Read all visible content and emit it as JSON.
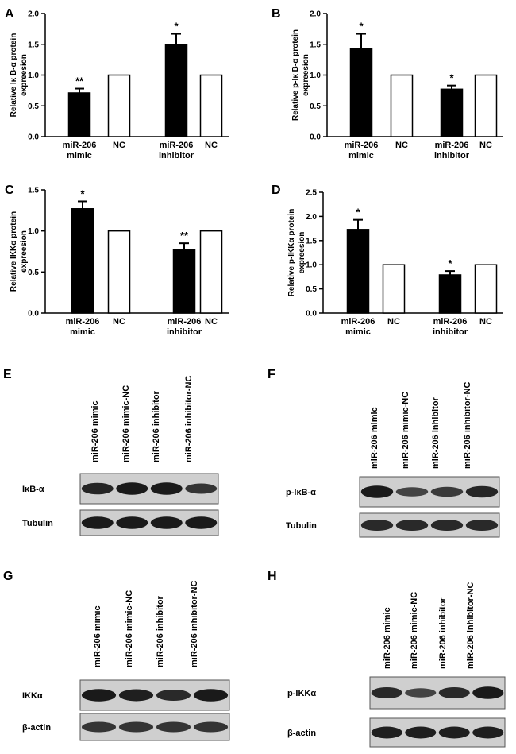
{
  "charts": [
    {
      "panel": "A",
      "ylabel": [
        "Relative Iκ B-α  protein",
        "expreesion"
      ],
      "ylim": [
        0,
        2.0
      ],
      "yticks": [
        "0.0",
        "0.5",
        "1.0",
        "1.5",
        "2.0"
      ],
      "bars": [
        {
          "cat": [
            "miR-206",
            "mimic"
          ],
          "value": 0.71,
          "err": 0.07,
          "fill": "#000000",
          "sig": "**"
        },
        {
          "cat": [
            "NC"
          ],
          "value": 1.0,
          "err": 0,
          "fill": "#ffffff",
          "sig": ""
        },
        {
          "cat": [
            "miR-206",
            "inhibitor"
          ],
          "value": 1.49,
          "err": 0.18,
          "fill": "#000000",
          "sig": "*"
        },
        {
          "cat": [
            "NC"
          ],
          "value": 1.0,
          "err": 0,
          "fill": "#ffffff",
          "sig": ""
        }
      ]
    },
    {
      "panel": "B",
      "ylabel": [
        "Relative p-Iκ B-α  protein",
        "expreesion"
      ],
      "ylim": [
        0,
        2.0
      ],
      "yticks": [
        "0.0",
        "0.5",
        "1.0",
        "1.5",
        "2.0"
      ],
      "bars": [
        {
          "cat": [
            "miR-206",
            "mimic"
          ],
          "value": 1.43,
          "err": 0.24,
          "fill": "#000000",
          "sig": "*"
        },
        {
          "cat": [
            "NC"
          ],
          "value": 1.0,
          "err": 0,
          "fill": "#ffffff",
          "sig": ""
        },
        {
          "cat": [
            "miR-206",
            "inhibitor"
          ],
          "value": 0.77,
          "err": 0.06,
          "fill": "#000000",
          "sig": "*"
        },
        {
          "cat": [
            "NC"
          ],
          "value": 1.0,
          "err": 0,
          "fill": "#ffffff",
          "sig": ""
        }
      ]
    },
    {
      "panel": "C",
      "ylabel": [
        "Relative IKKα  protein",
        "expreesion"
      ],
      "ylim": [
        0,
        1.5
      ],
      "yticks": [
        "0.0",
        "0.5",
        "1.0",
        "1.5"
      ],
      "bars": [
        {
          "cat": [
            "miR-206",
            "mimic"
          ],
          "value": 1.27,
          "err": 0.09,
          "fill": "#000000",
          "sig": "*"
        },
        {
          "cat": [
            "NC"
          ],
          "value": 1.0,
          "err": 0,
          "fill": "#ffffff",
          "sig": ""
        },
        {
          "cat": [
            "miR-206",
            "inhibitor"
          ],
          "value": 0.77,
          "err": 0.08,
          "fill": "#000000",
          "sig": "**"
        },
        {
          "cat": [
            "NC"
          ],
          "value": 1.0,
          "err": 0,
          "fill": "#ffffff",
          "sig": ""
        }
      ]
    },
    {
      "panel": "D",
      "ylabel": [
        "Relative p-IKKα  protein",
        "expreesion"
      ],
      "ylim": [
        0,
        2.5
      ],
      "yticks": [
        "0.0",
        "0.5",
        "1.0",
        "1.5",
        "2.0",
        "2.5"
      ],
      "bars": [
        {
          "cat": [
            "miR-206",
            "mimic"
          ],
          "value": 1.73,
          "err": 0.2,
          "fill": "#000000",
          "sig": "*"
        },
        {
          "cat": [
            "NC"
          ],
          "value": 1.0,
          "err": 0,
          "fill": "#ffffff",
          "sig": ""
        },
        {
          "cat": [
            "miR-206",
            "inhibitor"
          ],
          "value": 0.79,
          "err": 0.08,
          "fill": "#000000",
          "sig": "*"
        },
        {
          "cat": [
            "NC"
          ],
          "value": 1.0,
          "err": 0,
          "fill": "#ffffff",
          "sig": ""
        }
      ]
    }
  ],
  "blots": [
    {
      "panel": "E",
      "lanes": [
        "miR-206 mimic",
        "miR-206 mimic-NC",
        "miR-206 inhibitor",
        "miR-206 inhibitor-NC"
      ],
      "rows": [
        {
          "label": "IκB-α",
          "intensity": [
            0.85,
            0.95,
            0.95,
            0.7
          ]
        },
        {
          "label": "Tubulin",
          "intensity": [
            0.95,
            0.95,
            0.95,
            0.95
          ]
        }
      ]
    },
    {
      "panel": "F",
      "lanes": [
        "miR-206 mimic",
        "miR-206 mimic-NC",
        "miR-206 inhibitor",
        "miR-206 inhibitor-NC"
      ],
      "rows": [
        {
          "label": "p-IκB-α",
          "intensity": [
            0.95,
            0.55,
            0.65,
            0.85
          ]
        },
        {
          "label": "Tubulin",
          "intensity": [
            0.8,
            0.8,
            0.8,
            0.8
          ]
        }
      ]
    },
    {
      "panel": "G",
      "lanes": [
        "miR-206 mimic",
        "miR-206 mimic-NC",
        "miR-206 inhibitor",
        "miR-206 inhibitor-NC"
      ],
      "rows": [
        {
          "label": "IKKα",
          "intensity": [
            0.95,
            0.9,
            0.8,
            0.95
          ]
        },
        {
          "label": "β-actin",
          "intensity": [
            0.7,
            0.7,
            0.7,
            0.7
          ]
        }
      ]
    },
    {
      "panel": "H",
      "lanes": [
        "miR-206 mimic",
        "miR-206 mimic-NC",
        "miR-206 inhibitor",
        "miR-206 inhibitor-NC"
      ],
      "rows": [
        {
          "label": "p-IKKα",
          "intensity": [
            0.8,
            0.55,
            0.8,
            0.95
          ]
        },
        {
          "label": "β-actin",
          "intensity": [
            0.9,
            0.9,
            0.9,
            0.9
          ]
        }
      ]
    }
  ]
}
